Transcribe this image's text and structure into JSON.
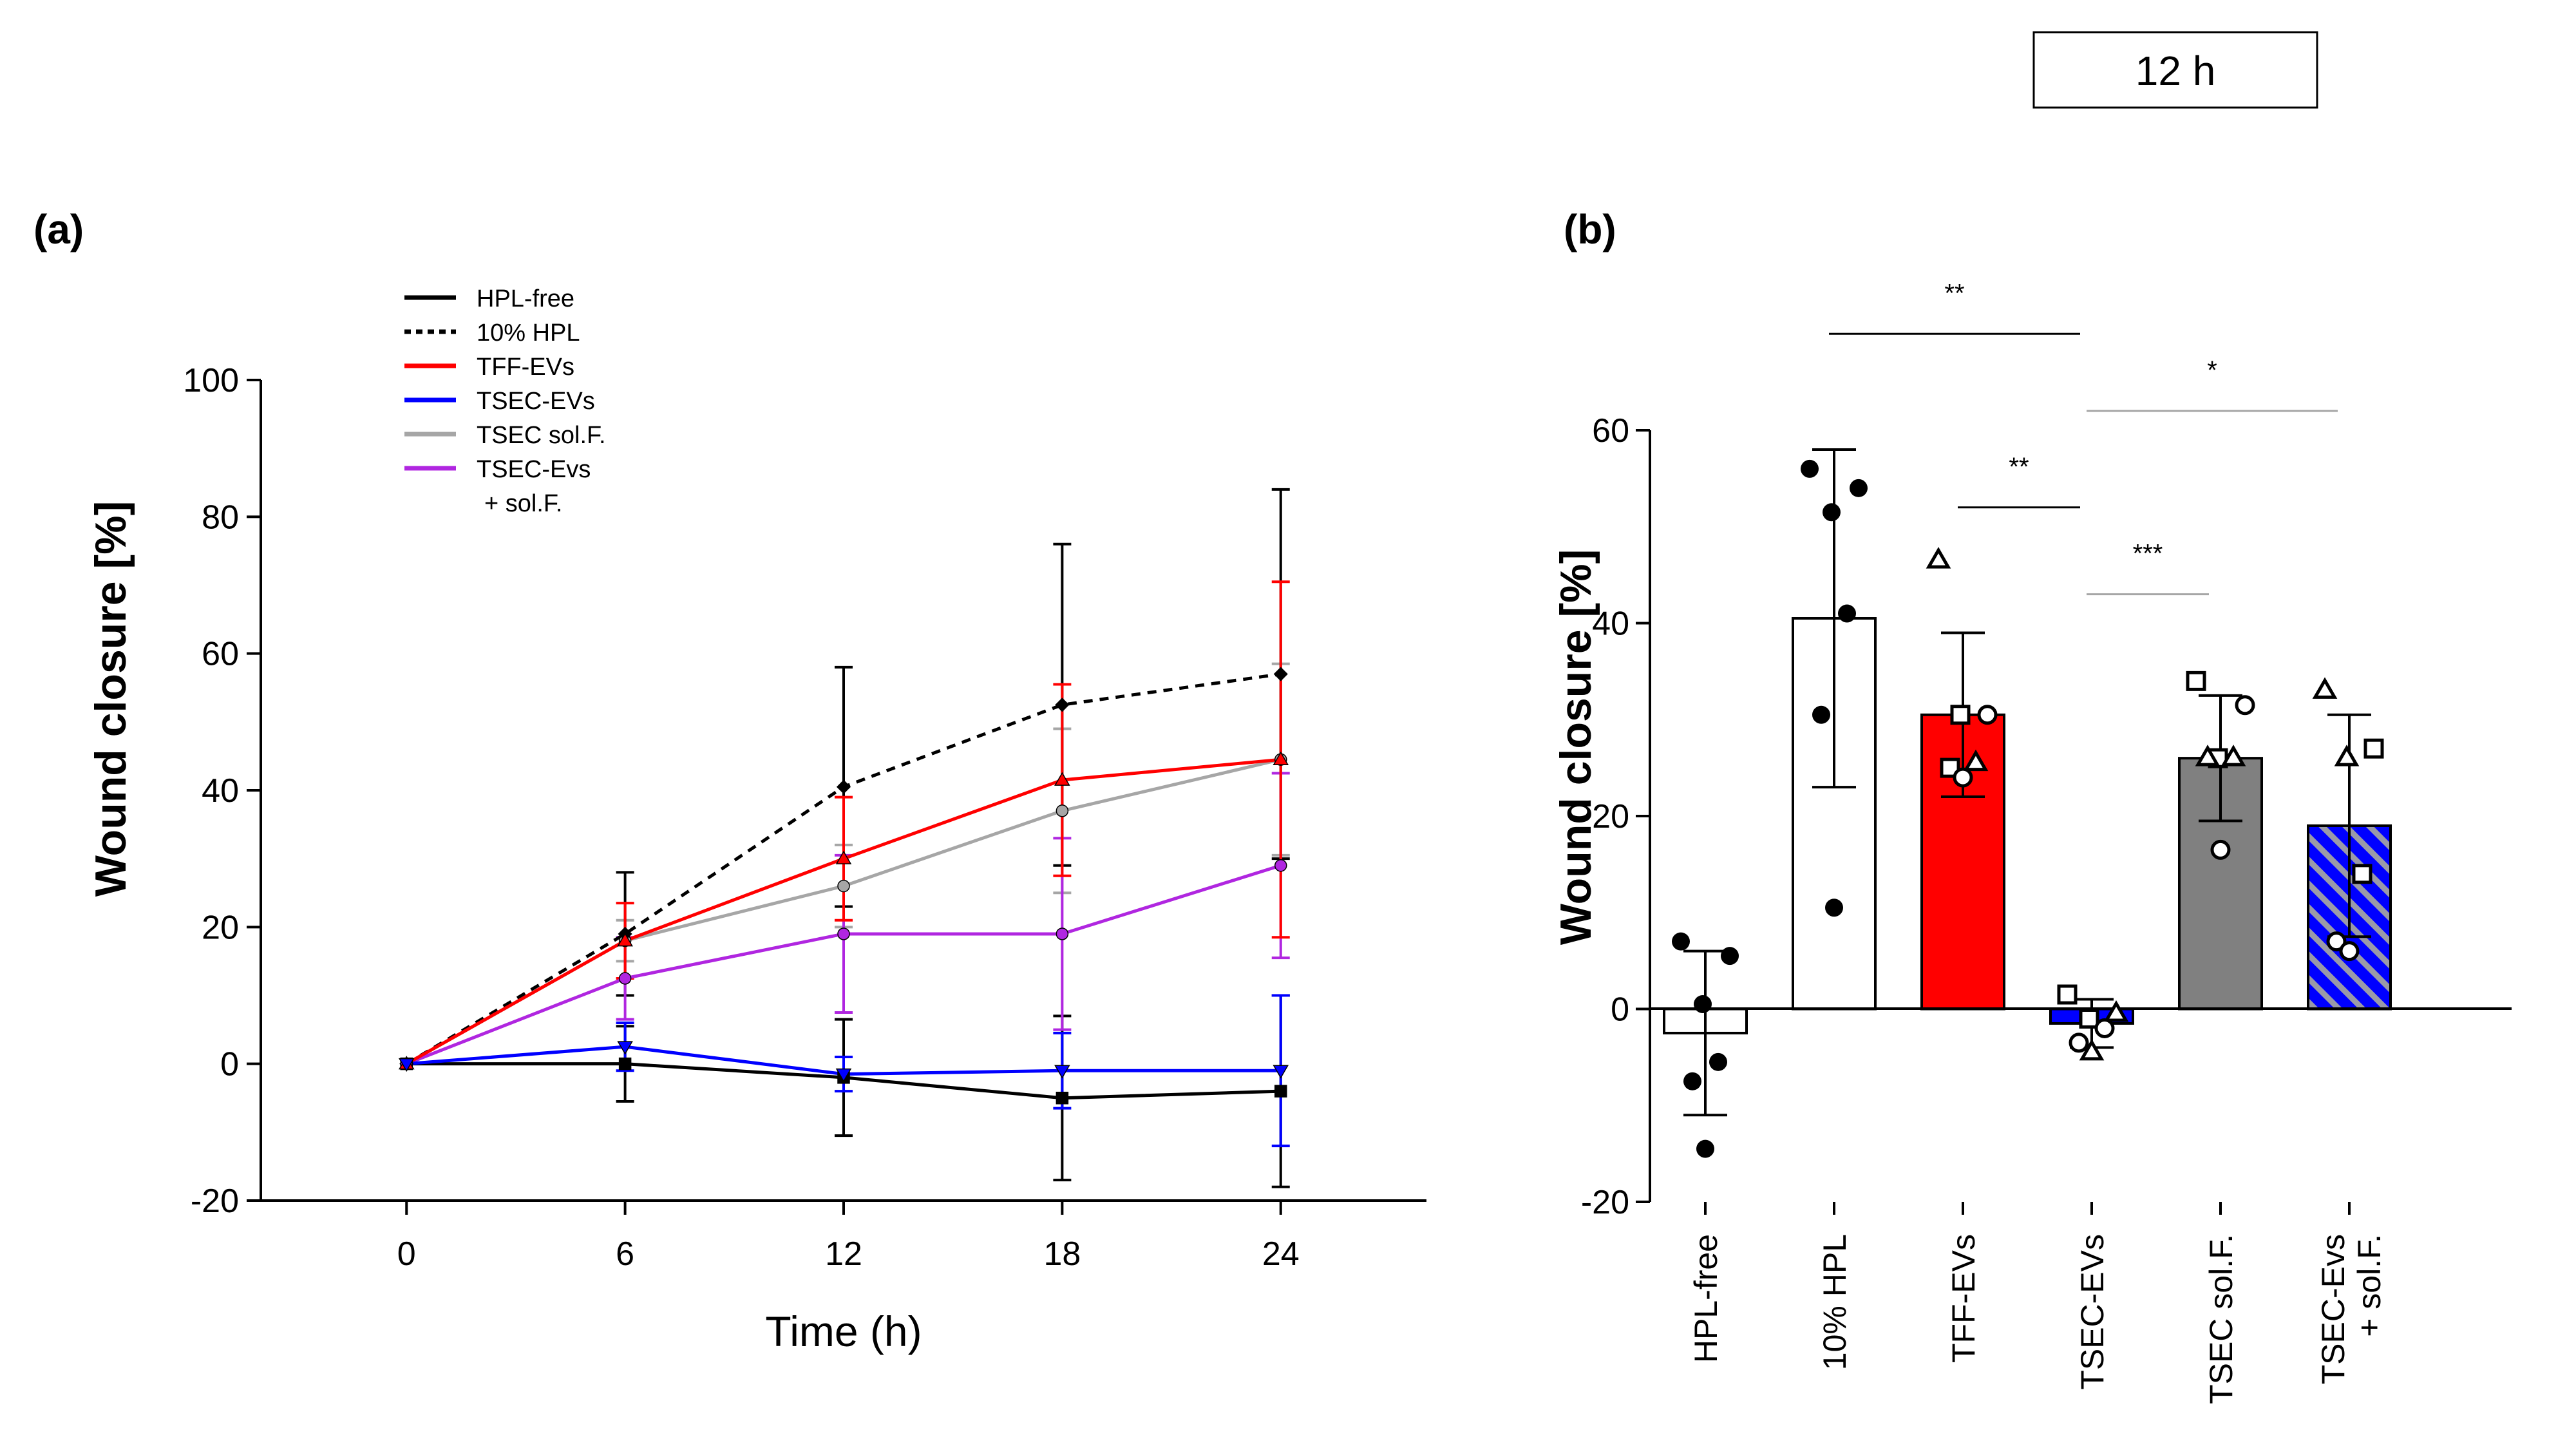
{
  "time_label": "12 h",
  "chart_data": [
    {
      "type": "line",
      "panel_label": "(a)",
      "xlabel": "Time (h)",
      "ylabel": "Wound closure  [%]",
      "x": [
        0,
        6,
        12,
        18,
        24
      ],
      "xticks": [
        0,
        6,
        12,
        18,
        24
      ],
      "xticklabels": [
        "0",
        "6",
        "12",
        "18",
        "24"
      ],
      "xlim": [
        -4,
        28
      ],
      "ylim": [
        -20,
        100
      ],
      "yticks": [
        -20,
        0,
        20,
        40,
        60,
        80,
        100
      ],
      "yticklabels": [
        "-20",
        "0",
        "20",
        "40",
        "60",
        "80",
        "100"
      ],
      "legend_position": "top-left",
      "series": [
        {
          "name": "HPL-free",
          "legend_lines": [
            "HPL-free"
          ],
          "color": "#000000",
          "style": "solid",
          "marker": "square",
          "values": [
            0,
            0,
            -2,
            -5,
            -4
          ],
          "errors": [
            0,
            5.5,
            8.5,
            12,
            14
          ]
        },
        {
          "name": "10% HPL",
          "legend_lines": [
            "10% HPL"
          ],
          "color": "#000000",
          "style": "dotted",
          "marker": "diamond",
          "values": [
            0,
            19,
            40.5,
            52.5,
            57
          ],
          "errors": [
            0,
            9,
            17.5,
            23.5,
            27
          ]
        },
        {
          "name": "TFF-EVs",
          "legend_lines": [
            "TFF-EVs"
          ],
          "color": "#ff0000",
          "style": "solid",
          "marker": "triangle",
          "values": [
            0,
            18,
            30,
            41.5,
            44.5
          ],
          "errors": [
            0,
            5.5,
            9,
            14,
            26
          ]
        },
        {
          "name": "TSEC-EVs",
          "legend_lines": [
            "TSEC-EVs"
          ],
          "color": "#0000ff",
          "style": "solid",
          "marker": "triangle-down",
          "values": [
            0,
            2.5,
            -1.5,
            -1,
            -1
          ],
          "errors": [
            0,
            3.5,
            2.5,
            5.5,
            11
          ]
        },
        {
          "name": "TSEC sol.F.",
          "legend_lines": [
            "TSEC sol.F."
          ],
          "color": "#a6a6a6",
          "style": "solid",
          "marker": "circle",
          "values": [
            0,
            18,
            26,
            37,
            44.5
          ],
          "errors": [
            0,
            3,
            6,
            12,
            14
          ]
        },
        {
          "name": "TSEC-Evs + sol.F.",
          "legend_lines": [
            "TSEC-Evs",
            "+ sol.F."
          ],
          "color": "#b026e0",
          "style": "solid",
          "marker": "circle",
          "values": [
            0,
            12.5,
            19,
            19,
            29
          ],
          "errors": [
            0,
            6,
            11.5,
            14,
            13.5
          ]
        }
      ]
    },
    {
      "type": "bar",
      "panel_label": "(b)",
      "ylabel": "Wound closure  [%]",
      "ylim": [
        -20,
        60
      ],
      "yticks": [
        -20,
        0,
        20,
        40,
        60
      ],
      "yticklabels": [
        "-20",
        "0",
        "20",
        "40",
        "60"
      ],
      "categories": [
        "HPL-free",
        "10% HPL",
        "TFF-EVs",
        "TSEC-EVs",
        "TSEC sol.F.",
        "TSEC-Evs + sol.F."
      ],
      "category_labels": [
        [
          "HPL-free"
        ],
        [
          "10% HPL"
        ],
        [
          "TFF-EVs"
        ],
        [
          "TSEC-EVs"
        ],
        [
          "TSEC sol.F."
        ],
        [
          "TSEC-Evs",
          "+ sol.F."
        ]
      ],
      "values": [
        -2.5,
        40.5,
        30.5,
        -1.5,
        26,
        19
      ],
      "errors": [
        8.5,
        17.5,
        8.5,
        2.5,
        6.5,
        11.5
      ],
      "fills": [
        "#ffffff",
        "#ffffff",
        "#ff0000",
        "#0000ff",
        "#808080",
        "hatched-blue"
      ],
      "points": [
        [
          {
            "v": 7,
            "m": "dot"
          },
          {
            "v": 5.5,
            "m": "dot"
          },
          {
            "v": 0.5,
            "m": "dot"
          },
          {
            "v": -5.5,
            "m": "dot"
          },
          {
            "v": -7.5,
            "m": "dot"
          },
          {
            "v": -14.5,
            "m": "dot"
          }
        ],
        [
          {
            "v": 56,
            "m": "dot"
          },
          {
            "v": 54,
            "m": "dot"
          },
          {
            "v": 51.5,
            "m": "dot"
          },
          {
            "v": 41,
            "m": "dot"
          },
          {
            "v": 30.5,
            "m": "dot"
          },
          {
            "v": 10.5,
            "m": "dot"
          }
        ],
        [
          {
            "v": 46.5,
            "m": "triangle"
          },
          {
            "v": 30.5,
            "m": "circle"
          },
          {
            "v": 30.5,
            "m": "square"
          },
          {
            "v": 25.5,
            "m": "triangle"
          },
          {
            "v": 25,
            "m": "square"
          },
          {
            "v": 24,
            "m": "circle"
          }
        ],
        [
          {
            "v": 1.5,
            "m": "square"
          },
          {
            "v": -0.5,
            "m": "triangle"
          },
          {
            "v": -1,
            "m": "square"
          },
          {
            "v": -2,
            "m": "circle"
          },
          {
            "v": -3.5,
            "m": "circle"
          },
          {
            "v": -4.5,
            "m": "triangle"
          }
        ],
        [
          {
            "v": 34,
            "m": "square"
          },
          {
            "v": 31.5,
            "m": "circle"
          },
          {
            "v": 26,
            "m": "square"
          },
          {
            "v": 26,
            "m": "triangle"
          },
          {
            "v": 26,
            "m": "triangle"
          },
          {
            "v": 16.5,
            "m": "circle"
          }
        ],
        [
          {
            "v": 33,
            "m": "triangle"
          },
          {
            "v": 27,
            "m": "square"
          },
          {
            "v": 26,
            "m": "triangle"
          },
          {
            "v": 14,
            "m": "square"
          },
          {
            "v": 7,
            "m": "circle"
          },
          {
            "v": 6,
            "m": "circle"
          }
        ]
      ],
      "significance": [
        {
          "from": 1,
          "to": 3,
          "label": "**",
          "line_y": 70,
          "color": "#000000"
        },
        {
          "from": 3,
          "to": 5,
          "label": "*",
          "line_y": 62,
          "color": "#a6a6a6"
        },
        {
          "from": 2,
          "to": 3,
          "label": "**",
          "line_y": 52,
          "color": "#000000"
        },
        {
          "from": 3,
          "to": 4,
          "label": "***",
          "line_y": 43,
          "color": "#a6a6a6"
        }
      ]
    }
  ]
}
